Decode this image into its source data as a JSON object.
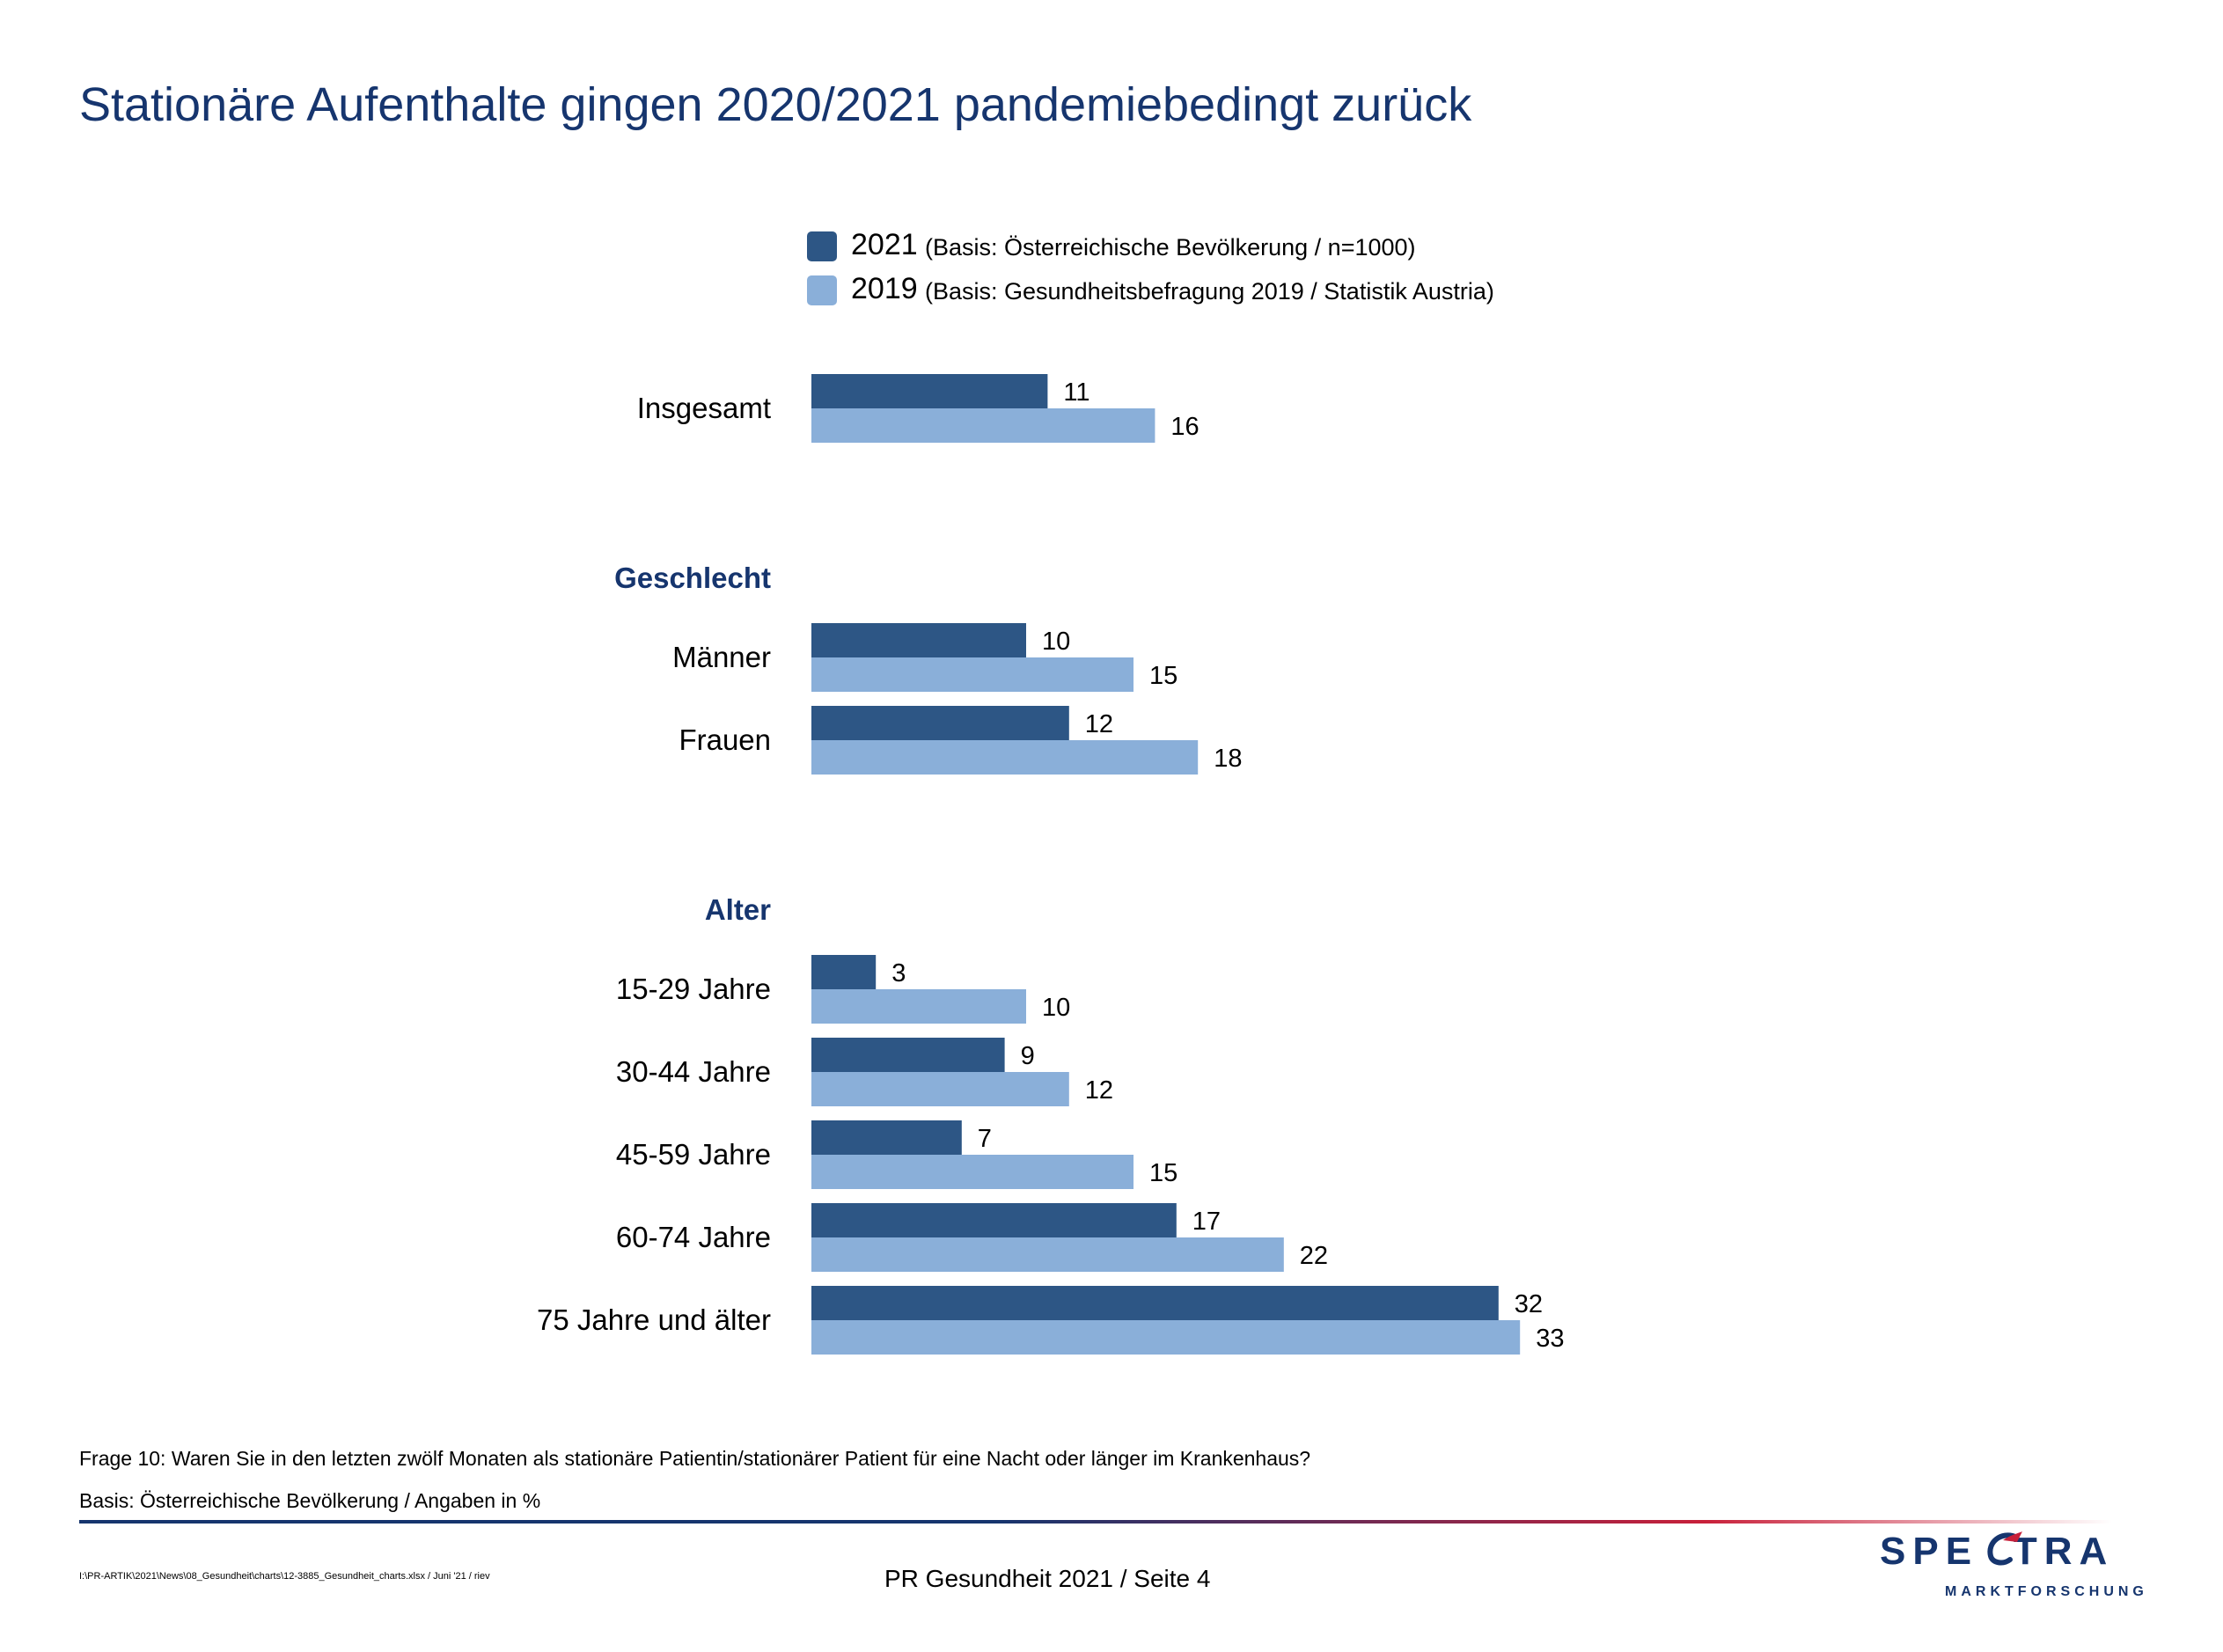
{
  "title": "Stationäre Aufenthalte gingen 2020/2021 pandemiebedingt zurück",
  "colors": {
    "title": "#16356e",
    "series_2021": "#2d5685",
    "series_2019": "#8aafd9",
    "accent_red": "#c8203a"
  },
  "legend": [
    {
      "year": "2021",
      "basis": "(Basis: Österreichische Bevölkerung / n=1000)"
    },
    {
      "year": "2019",
      "basis": "(Basis: Gesundheitsbefragung 2019 / Statistik Austria)"
    }
  ],
  "chart_data": {
    "type": "bar",
    "orientation": "horizontal",
    "unit": "%",
    "xlim": [
      0,
      35
    ],
    "grid": false,
    "legend_position": "top",
    "series": [
      {
        "name": "2021",
        "color": "#2d5685"
      },
      {
        "name": "2019",
        "color": "#8aafd9"
      }
    ],
    "groups": [
      {
        "label": "",
        "categories": [
          {
            "label": "Insgesamt",
            "values": [
              11,
              16
            ]
          }
        ]
      },
      {
        "label": "Geschlecht",
        "categories": [
          {
            "label": "Männer",
            "values": [
              10,
              15
            ]
          },
          {
            "label": "Frauen",
            "values": [
              12,
              18
            ]
          }
        ]
      },
      {
        "label": "Alter",
        "categories": [
          {
            "label": "15-29 Jahre",
            "values": [
              3,
              10
            ]
          },
          {
            "label": "30-44 Jahre",
            "values": [
              9,
              12
            ]
          },
          {
            "label": "45-59 Jahre",
            "values": [
              7,
              15
            ]
          },
          {
            "label": "60-74 Jahre",
            "values": [
              17,
              22
            ]
          },
          {
            "label": "75 Jahre und älter",
            "values": [
              32,
              33
            ]
          }
        ]
      }
    ]
  },
  "question": "Frage 10: Waren Sie in den letzten zwölf Monaten als stationäre Patientin/stationärer Patient für eine Nacht oder länger im Krankenhaus?",
  "basis_note": "Basis: Österreichische Bevölkerung / Angaben in %",
  "file_path": "I:\\PR-ARTIK\\2021\\News\\08_Gesundheit\\charts\\12-3885_Gesundheit_charts.xlsx / Juni '21 / riev",
  "footer": "PR Gesundheit 2021  /  Seite  4",
  "logo": {
    "word": "SPECTRA",
    "tagline": "MARKTFORSCHUNG"
  }
}
